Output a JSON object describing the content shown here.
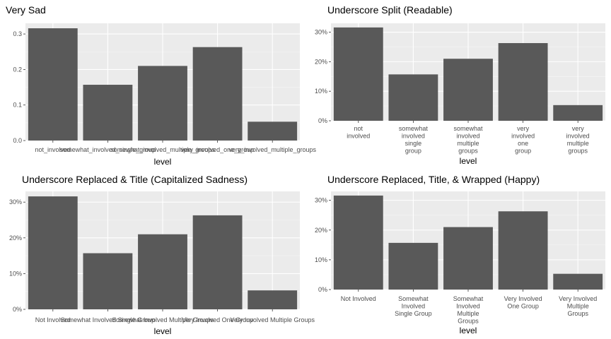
{
  "chart_data": [
    {
      "type": "bar",
      "title": "Very Sad",
      "xlabel": "level",
      "ylabel": "",
      "categories": [
        [
          "not_involved"
        ],
        [
          "somewhat_involved_single_group"
        ],
        [
          "somewhat_involved_multiple_groups"
        ],
        [
          "very_involved_one_group"
        ],
        [
          "very_involved_multiple_groups"
        ]
      ],
      "values": [
        0.316,
        0.157,
        0.21,
        0.263,
        0.053
      ],
      "ylim": [
        0,
        0.33
      ],
      "yticks": [
        0.0,
        0.1,
        0.2,
        0.3
      ],
      "ytick_labels": [
        "0.0",
        "0.1",
        "0.2",
        "0.3"
      ],
      "grid": true
    },
    {
      "type": "bar",
      "title": "Underscore Split (Readable)",
      "xlabel": "level",
      "ylabel": "",
      "categories": [
        [
          "not",
          "involved"
        ],
        [
          "somewhat",
          "involved",
          "single",
          "group"
        ],
        [
          "somewhat",
          "involved",
          "multiple",
          "groups"
        ],
        [
          "very",
          "involved",
          "one",
          "group"
        ],
        [
          "very",
          "involved",
          "multiple",
          "groups"
        ]
      ],
      "values": [
        0.316,
        0.157,
        0.21,
        0.263,
        0.053
      ],
      "ylim": [
        0,
        0.33
      ],
      "yticks": [
        0.0,
        0.1,
        0.2,
        0.3
      ],
      "ytick_labels": [
        "0%",
        "10%",
        "20%",
        "30%"
      ],
      "grid": true
    },
    {
      "type": "bar",
      "title": "Underscore Replaced & Title (Capitalized Sadness)",
      "xlabel": "level",
      "ylabel": "",
      "categories": [
        [
          "Not Involved"
        ],
        [
          "Somewhat Involved Single Group"
        ],
        [
          "Somewhat Involved Multiple Groups"
        ],
        [
          "Very Involved One Group"
        ],
        [
          "Very Involved Multiple Groups"
        ]
      ],
      "values": [
        0.316,
        0.157,
        0.21,
        0.263,
        0.053
      ],
      "ylim": [
        0,
        0.33
      ],
      "yticks": [
        0.0,
        0.1,
        0.2,
        0.3
      ],
      "ytick_labels": [
        "0%",
        "10%",
        "20%",
        "30%"
      ],
      "grid": true
    },
    {
      "type": "bar",
      "title": "Underscore Replaced, Title, & Wrapped (Happy)",
      "xlabel": "level",
      "ylabel": "",
      "categories": [
        [
          "Not Involved"
        ],
        [
          "Somewhat",
          "Involved",
          "Single Group"
        ],
        [
          "Somewhat",
          "Involved",
          "Multiple",
          "Groups"
        ],
        [
          "Very Involved",
          "One Group"
        ],
        [
          "Very Involved",
          "Multiple",
          "Groups"
        ]
      ],
      "values": [
        0.316,
        0.157,
        0.21,
        0.263,
        0.053
      ],
      "ylim": [
        0,
        0.33
      ],
      "yticks": [
        0.0,
        0.1,
        0.2,
        0.3
      ],
      "ytick_labels": [
        "0%",
        "10%",
        "20%",
        "30%"
      ],
      "grid": true
    }
  ],
  "colors": {
    "panel": "#ebebeb",
    "grid_major": "#ffffff",
    "grid_minor": "#f5f5f5",
    "bar": "#595959",
    "tick_text": "#4d4d4d",
    "tick_mark": "#333333"
  }
}
